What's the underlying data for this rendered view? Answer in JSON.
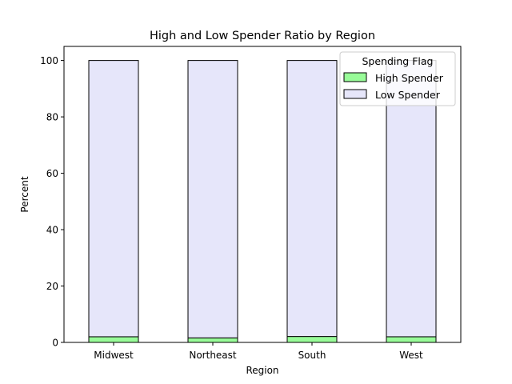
{
  "chart_data": {
    "type": "bar",
    "stacked": true,
    "title": "High and Low Spender Ratio by Region",
    "xlabel": "Region",
    "ylabel": "Percent",
    "categories": [
      "Midwest",
      "Northeast",
      "South",
      "West"
    ],
    "series": [
      {
        "name": "High Spender",
        "color": "#98fb98",
        "values": [
          2.0,
          1.6,
          2.1,
          2.0
        ]
      },
      {
        "name": "Low Spender",
        "color": "#e6e6fa",
        "values": [
          98.0,
          98.4,
          97.9,
          98.0
        ]
      }
    ],
    "ylim": [
      0,
      105
    ],
    "yticks": [
      0,
      20,
      40,
      60,
      80,
      100
    ],
    "grid": false,
    "legend": {
      "title": "Spending Flag",
      "placement": "top-right"
    },
    "edge_color": "#000000"
  }
}
